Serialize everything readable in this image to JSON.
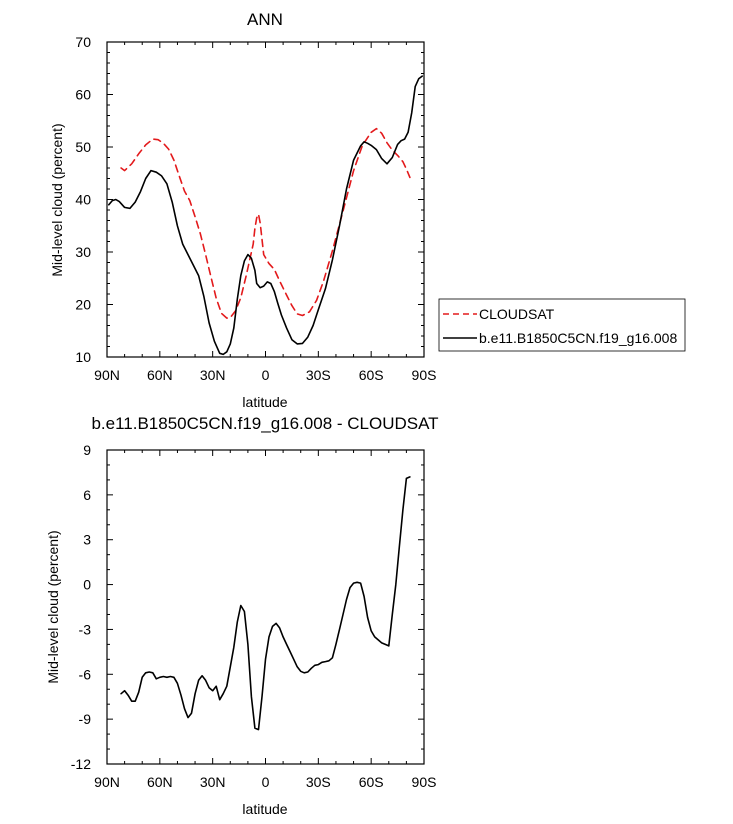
{
  "chart_data": [
    {
      "type": "line",
      "title": "ANN",
      "xlabel": "latitude",
      "ylabel": "Mid-level cloud (percent)",
      "xlim": [
        90,
        -90
      ],
      "ylim": [
        10,
        70
      ],
      "xticks": [
        90,
        60,
        30,
        0,
        -30,
        -60,
        -90
      ],
      "xtick_labels": [
        "90N",
        "60N",
        "30N",
        "0",
        "30S",
        "60S",
        "90S"
      ],
      "yticks": [
        10,
        20,
        30,
        40,
        50,
        60,
        70
      ],
      "ytick_labels": [
        "10",
        "20",
        "30",
        "40",
        "50",
        "60",
        "70"
      ],
      "legend": {
        "placement": "right-outside"
      },
      "series": [
        {
          "name": "CLOUDSAT",
          "color": "#e31a1c",
          "dash": "dashed",
          "x": [
            82,
            80,
            76,
            72,
            68,
            64,
            61,
            58,
            55,
            52,
            49,
            46,
            43,
            40,
            37,
            34,
            31,
            28,
            25,
            22,
            20,
            17,
            14,
            11,
            9,
            7,
            6,
            5,
            4,
            3,
            1,
            -2,
            -5,
            -8,
            -12,
            -15,
            -18,
            -21,
            -25,
            -29,
            -33,
            -38,
            -44,
            -50,
            -55,
            -60,
            -63,
            -66,
            -69,
            -72,
            -75,
            -78,
            -80,
            -82
          ],
          "y": [
            46,
            45.5,
            46.8,
            48.7,
            50.4,
            51.5,
            51.4,
            50.7,
            49.6,
            47.5,
            44.5,
            41.6,
            39.8,
            36.7,
            33.5,
            29.5,
            25.3,
            21.2,
            18.3,
            17.4,
            17.5,
            18.8,
            21.3,
            25.4,
            28.5,
            31.5,
            34.5,
            36.5,
            37.2,
            35.5,
            29.5,
            27.8,
            26.7,
            24.5,
            21.8,
            19.8,
            18.2,
            17.9,
            18.6,
            20.8,
            24.5,
            30.2,
            37.8,
            45.5,
            50.3,
            52.8,
            53.5,
            52.6,
            50.8,
            49.4,
            48.4,
            47.2,
            45.8,
            44.2
          ]
        },
        {
          "name": "b.e11.B1850C5CN.f19_g16.008",
          "color": "#000000",
          "dash": "solid",
          "x": [
            89,
            87,
            85,
            83,
            80,
            77,
            74,
            71,
            68,
            65,
            62,
            59,
            56,
            53,
            50,
            47,
            44,
            41,
            38,
            35,
            32,
            29,
            26,
            24,
            22,
            20,
            18,
            16,
            14,
            12,
            10,
            8,
            6,
            5,
            3,
            1,
            -1,
            -3,
            -5,
            -7,
            -9,
            -12,
            -15,
            -18,
            -21,
            -24,
            -27,
            -30,
            -34,
            -38,
            -42,
            -46,
            -50,
            -54,
            -56,
            -58,
            -60,
            -63,
            -66,
            -69,
            -72,
            -75,
            -77,
            -79,
            -81,
            -83,
            -85,
            -87,
            -89
          ],
          "y": [
            39,
            39.8,
            40,
            39.6,
            38.5,
            38.3,
            39.5,
            41.5,
            44,
            45.5,
            45.2,
            44.5,
            43,
            39.5,
            35,
            31.5,
            29.5,
            27.5,
            25.5,
            21.5,
            16.5,
            13,
            10.7,
            10.5,
            11,
            12.5,
            15.5,
            21,
            25.5,
            28.3,
            29.5,
            28.8,
            26.5,
            24,
            23.2,
            23.5,
            24.3,
            24,
            22.5,
            20.2,
            18,
            15.5,
            13.3,
            12.5,
            12.6,
            13.8,
            16,
            19,
            23,
            28.5,
            35,
            42,
            47.5,
            50.2,
            51,
            50.7,
            50.3,
            49.5,
            47.8,
            46.8,
            48,
            50.5,
            51.2,
            51.5,
            52.8,
            56.5,
            61.5,
            63,
            63.5
          ]
        }
      ]
    },
    {
      "type": "line",
      "title": "b.e11.B1850C5CN.f19_g16.008 - CLOUDSAT",
      "xlabel": "latitude",
      "ylabel": "Mid-level cloud (percent)",
      "xlim": [
        90,
        -90
      ],
      "ylim": [
        -12,
        9
      ],
      "xticks": [
        90,
        60,
        30,
        0,
        -30,
        -60,
        -90
      ],
      "xtick_labels": [
        "90N",
        "60N",
        "30N",
        "0",
        "30S",
        "60S",
        "90S"
      ],
      "yticks": [
        -12,
        -9,
        -6,
        -3,
        0,
        3,
        6,
        9
      ],
      "ytick_labels": [
        "-12",
        "-9",
        "-6",
        "-3",
        "0",
        "3",
        "6",
        "9"
      ],
      "series": [
        {
          "color": "#000000",
          "dash": "solid",
          "x": [
            82,
            80,
            78,
            76,
            74,
            72,
            70,
            68,
            66,
            64,
            62,
            60,
            58,
            56,
            54,
            52,
            50,
            48,
            46,
            44,
            42,
            40,
            38,
            36,
            34,
            32,
            30,
            28,
            26,
            24,
            22,
            20,
            18,
            16,
            14,
            12,
            10,
            8,
            6,
            4,
            2,
            0,
            -2,
            -4,
            -6,
            -8,
            -10,
            -12,
            -14,
            -16,
            -18,
            -20,
            -22,
            -24,
            -26,
            -28,
            -30,
            -32,
            -34,
            -36,
            -38,
            -40,
            -42,
            -44,
            -46,
            -48,
            -50,
            -52,
            -54,
            -56,
            -58,
            -60,
            -62,
            -64,
            -66,
            -68,
            -70,
            -72,
            -74,
            -76,
            -78,
            -80,
            -82
          ],
          "y": [
            -7.3,
            -7.1,
            -7.4,
            -7.8,
            -7.8,
            -7.2,
            -6.2,
            -5.9,
            -5.85,
            -5.9,
            -6.3,
            -6.2,
            -6.15,
            -6.2,
            -6.15,
            -6.2,
            -6.6,
            -7.4,
            -8.3,
            -8.9,
            -8.6,
            -7.3,
            -6.4,
            -6.1,
            -6.4,
            -6.9,
            -7.1,
            -6.8,
            -7.7,
            -7.3,
            -6.8,
            -5.5,
            -4.2,
            -2.5,
            -1.4,
            -1.8,
            -4.0,
            -7.5,
            -9.6,
            -9.7,
            -7.5,
            -5.0,
            -3.5,
            -2.8,
            -2.6,
            -2.9,
            -3.5,
            -4.0,
            -4.5,
            -5.0,
            -5.5,
            -5.8,
            -5.9,
            -5.85,
            -5.6,
            -5.4,
            -5.35,
            -5.2,
            -5.15,
            -5.1,
            -4.9,
            -4.0,
            -3.0,
            -2.0,
            -1.0,
            -0.2,
            0.1,
            0.15,
            0.1,
            -0.8,
            -2.2,
            -3.1,
            -3.5,
            -3.7,
            -3.9,
            -4.0,
            -4.1,
            -2.0,
            0.0,
            2.5,
            5.0,
            7.1,
            7.2
          ]
        }
      ]
    }
  ]
}
